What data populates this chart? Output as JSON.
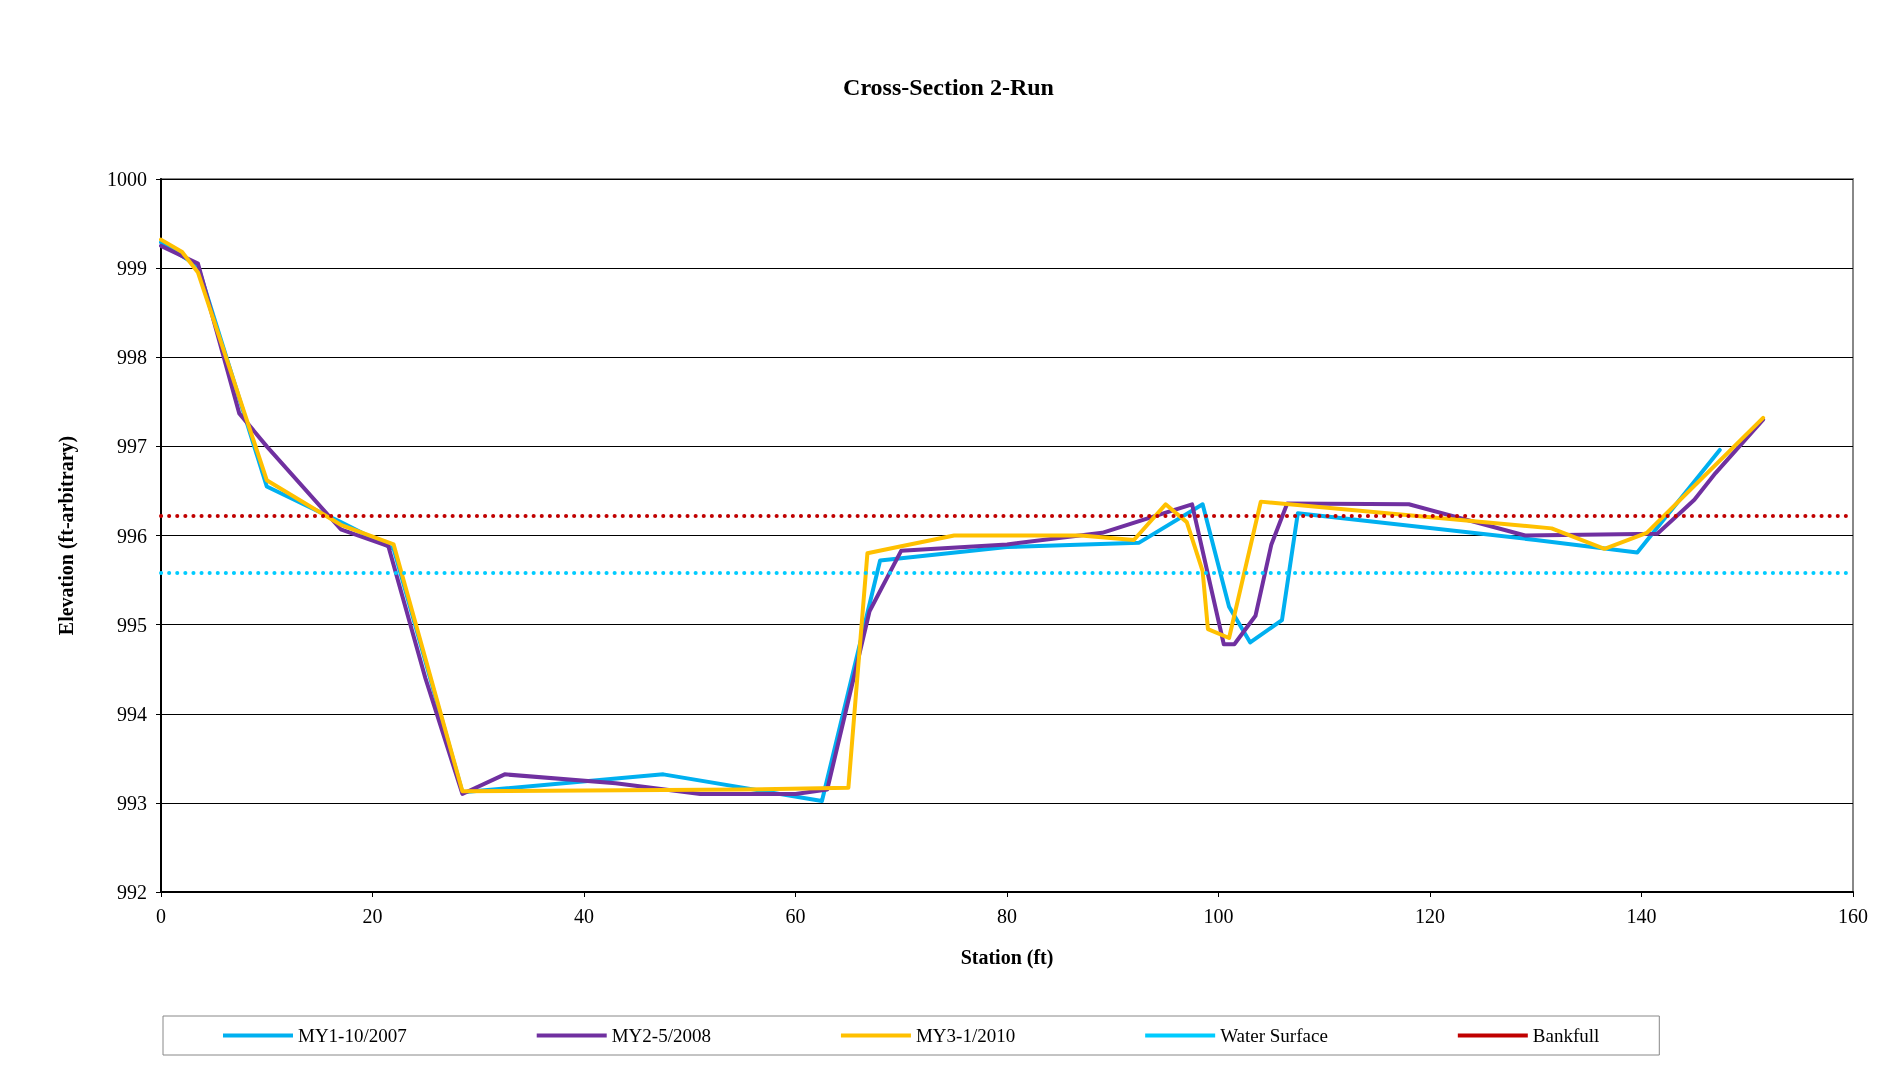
{
  "chart_data": {
    "type": "line",
    "title": "Cross-Section 2-Run",
    "xlabel": "Station (ft)",
    "ylabel": "Elevation (ft-arbitrary)",
    "xlim": [
      0,
      160
    ],
    "xticks": [
      0,
      20,
      40,
      60,
      80,
      100,
      120,
      140,
      160
    ],
    "ylim": [
      992,
      1000
    ],
    "yticks": [
      992,
      993,
      994,
      995,
      996,
      997,
      998,
      999,
      1000
    ],
    "grid": "y",
    "legend": "bottom",
    "marker": "none",
    "line_style": "solid",
    "series": [
      {
        "name": "MY1-10/2007",
        "color": "#00b0f0",
        "x": [
          0,
          3.5,
          10,
          17,
          22,
          28.5,
          47.5,
          62.5,
          68,
          80,
          92.5,
          98.5,
          101,
          103,
          106,
          107.5,
          130,
          139.6,
          147.4
        ],
        "values": [
          999.29,
          999.02,
          996.55,
          996.15,
          995.85,
          993.12,
          993.32,
          993.02,
          995.72,
          995.87,
          995.92,
          996.35,
          995.2,
          994.8,
          995.05,
          996.25,
          995.95,
          995.81,
          996.96
        ]
      },
      {
        "name": "MY2-5/2008",
        "color": "#7030a0",
        "x": [
          0,
          3.5,
          7.4,
          10,
          17,
          21.5,
          25,
          28.5,
          32.5,
          43,
          51,
          60,
          63,
          67,
          70,
          80,
          89,
          97.5,
          100.5,
          101.5,
          103.5,
          105,
          106.5,
          118,
          129,
          141.5,
          145,
          147,
          151.5
        ],
        "values": [
          999.25,
          999.05,
          997.37,
          997.0,
          996.07,
          995.88,
          994.4,
          993.1,
          993.32,
          993.22,
          993.1,
          993.1,
          993.15,
          995.15,
          995.83,
          995.9,
          996.03,
          996.35,
          994.78,
          994.78,
          995.1,
          995.9,
          996.36,
          996.35,
          996.0,
          996.02,
          996.4,
          996.7,
          997.3
        ]
      },
      {
        "name": "MY3-1/2010",
        "color": "#ffc000",
        "x": [
          0,
          2,
          3.5,
          10,
          17,
          22,
          28.5,
          40,
          55,
          65,
          66.8,
          70,
          75,
          87,
          92,
          95,
          97,
          98.5,
          99,
          101,
          104,
          131.5,
          136.5,
          140.5,
          151.5
        ],
        "values": [
          999.32,
          999.18,
          998.95,
          996.62,
          996.12,
          995.9,
          993.13,
          993.14,
          993.15,
          993.17,
          995.8,
          995.88,
          996.0,
          996.0,
          995.95,
          996.35,
          996.15,
          995.6,
          994.95,
          994.85,
          996.38,
          996.08,
          995.85,
          996.03,
          997.32
        ]
      }
    ],
    "ref_lines": [
      {
        "axis": "y",
        "value": 995.58,
        "label": "Water Surface",
        "color": "#00ccff",
        "line_style": "dotted"
      },
      {
        "axis": "y",
        "value": 996.22,
        "label": "Bankfull",
        "color": "#c00000",
        "line_style": "dotted"
      }
    ]
  }
}
